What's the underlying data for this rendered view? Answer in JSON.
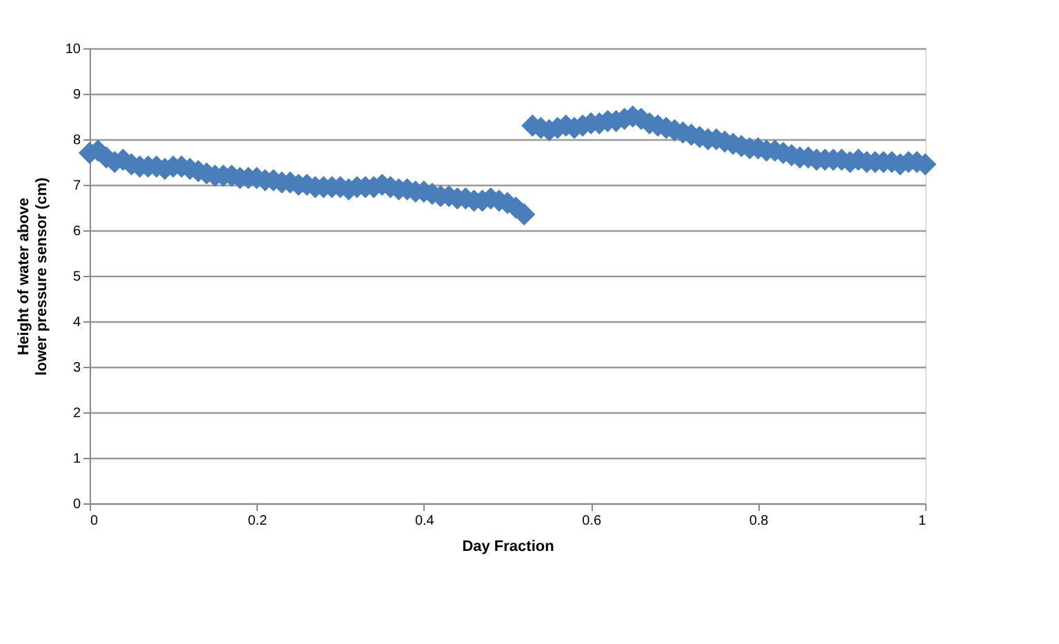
{
  "chart_data": {
    "type": "scatter",
    "xlabel": "Day Fraction",
    "ylabel": "Height of water above lower pressure sensor (cm)",
    "xlim": [
      0,
      1
    ],
    "xticks": [
      0,
      0.2,
      0.4,
      0.6,
      0.8,
      1
    ],
    "ylim": [
      0,
      10
    ],
    "yticks": [
      0,
      1,
      2,
      3,
      4,
      5,
      6,
      7,
      8,
      9,
      10
    ],
    "grid": "y",
    "marker": "diamond",
    "x": [
      0,
      0.01,
      0.02,
      0.03,
      0.04,
      0.05,
      0.06,
      0.07,
      0.08,
      0.09,
      0.1,
      0.11,
      0.12,
      0.13,
      0.14,
      0.15,
      0.16,
      0.17,
      0.18,
      0.19,
      0.2,
      0.21,
      0.22,
      0.23,
      0.24,
      0.25,
      0.26,
      0.27,
      0.28,
      0.29,
      0.3,
      0.31,
      0.32,
      0.33,
      0.34,
      0.35,
      0.36,
      0.37,
      0.38,
      0.39,
      0.4,
      0.41,
      0.42,
      0.43,
      0.44,
      0.45,
      0.46,
      0.47,
      0.48,
      0.49,
      0.5,
      0.51,
      0.52,
      0.53,
      0.54,
      0.55,
      0.56,
      0.57,
      0.58,
      0.59,
      0.6,
      0.61,
      0.62,
      0.63,
      0.64,
      0.65,
      0.66,
      0.67,
      0.68,
      0.69,
      0.7,
      0.71,
      0.72,
      0.73,
      0.74,
      0.75,
      0.76,
      0.77,
      0.78,
      0.79,
      0.8,
      0.81,
      0.82,
      0.83,
      0.84,
      0.85,
      0.86,
      0.87,
      0.88,
      0.89,
      0.9,
      0.91,
      0.92,
      0.93,
      0.94,
      0.95,
      0.96,
      0.97,
      0.98,
      0.99,
      1.0
    ],
    "series": [
      {
        "color": "#4a7ebb",
        "values": [
          7.7,
          7.75,
          7.6,
          7.5,
          7.55,
          7.45,
          7.4,
          7.4,
          7.4,
          7.35,
          7.4,
          7.4,
          7.35,
          7.3,
          7.25,
          7.2,
          7.2,
          7.2,
          7.15,
          7.15,
          7.15,
          7.1,
          7.1,
          7.05,
          7.05,
          7.0,
          7.0,
          6.95,
          6.95,
          6.95,
          6.95,
          6.9,
          6.95,
          6.95,
          6.95,
          7.0,
          6.95,
          6.9,
          6.9,
          6.85,
          6.85,
          6.8,
          6.75,
          6.75,
          6.7,
          6.7,
          6.65,
          6.65,
          6.7,
          6.65,
          6.6,
          6.5,
          6.35,
          8.3,
          8.25,
          8.2,
          8.25,
          8.3,
          8.25,
          8.3,
          8.35,
          8.35,
          8.4,
          8.4,
          8.45,
          8.5,
          8.45,
          8.35,
          8.3,
          8.25,
          8.2,
          8.15,
          8.1,
          8.05,
          8.0,
          8.0,
          7.95,
          7.9,
          7.85,
          7.8,
          7.8,
          7.75,
          7.75,
          7.7,
          7.65,
          7.6,
          7.6,
          7.55,
          7.55,
          7.55,
          7.55,
          7.5,
          7.55,
          7.5,
          7.5,
          7.5,
          7.5,
          7.45,
          7.5,
          7.5,
          7.45
        ]
      }
    ]
  }
}
